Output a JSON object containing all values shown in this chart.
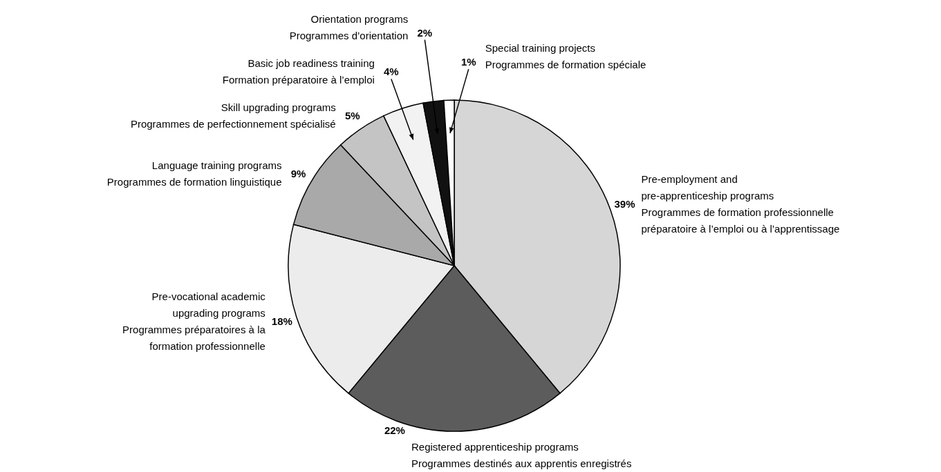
{
  "chart_data": {
    "type": "pie",
    "categories": [
      "Pre-employment and\npre-apprenticeship programs\nProgrammes de formation professionnelle\npréparatoire à l’emploi ou à l’apprentissage",
      "Registered apprenticeship programs\nProgrammes destinés aux apprentis enregistrés",
      "Pre-vocational academic\nupgrading programs\nProgrammes préparatoires à la\nformation professionnelle",
      "Language training programs\nProgrammes de formation linguistique",
      "Skill upgrading programs\nProgrammes de perfectionnement spécialisé",
      "Basic job readiness training\nFormation préparatoire à l’emploi",
      "Orientation programs\nProgrammes d’orientation",
      "Special training projects\nProgrammes de formation spéciale"
    ],
    "values": [
      39,
      22,
      18,
      9,
      5,
      4,
      2,
      1
    ],
    "value_labels": [
      "39%",
      "22%",
      "18%",
      "9%",
      "5%",
      "4%",
      "2%",
      "1%"
    ],
    "colors": [
      "#d6d6d6",
      "#5c5c5c",
      "#ececec",
      "#a9a9a9",
      "#c4c4c4",
      "#f2f2f2",
      "#111111",
      "#ffffff"
    ]
  }
}
